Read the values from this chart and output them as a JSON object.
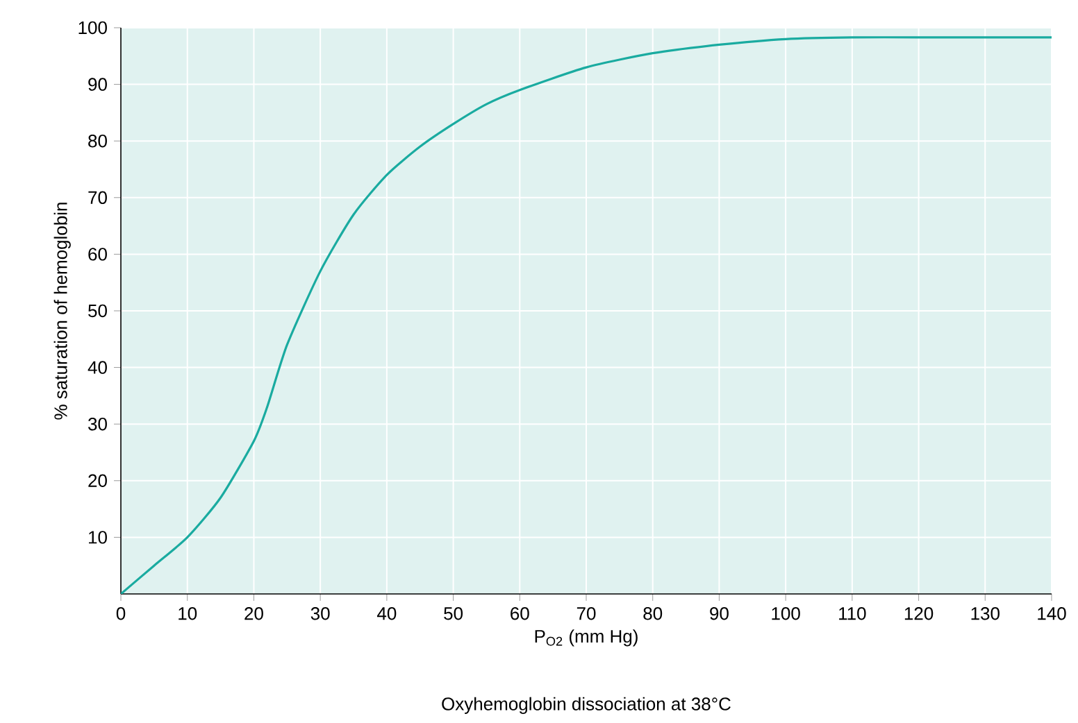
{
  "chart_data": {
    "type": "line",
    "xlabel": "P$_{O2}$ (mm Hg)",
    "ylabel": "% saturation of hemoglobin",
    "annotations": [
      "Oxyhemoglobin dissociation at 38°C"
    ],
    "x": [
      0,
      5,
      10,
      15,
      20,
      22,
      25,
      30,
      35,
      40,
      45,
      50,
      55,
      60,
      70,
      80,
      90,
      100,
      110,
      120,
      130,
      140
    ],
    "series": [
      {
        "color": "#1aaba0",
        "values": [
          0,
          5,
          10,
          17,
          27,
          33,
          44,
          57,
          67,
          74,
          79,
          83,
          86.5,
          89,
          93,
          95.5,
          97,
          98,
          98.3,
          98.3,
          98.3,
          98.3
        ]
      }
    ],
    "xlim": [
      0,
      140
    ],
    "ylim": [
      0,
      100
    ],
    "xticks": [
      0,
      10,
      20,
      30,
      40,
      50,
      60,
      70,
      80,
      90,
      100,
      110,
      120,
      130,
      140
    ],
    "yticks": [
      10,
      20,
      30,
      40,
      50,
      60,
      70,
      80,
      90,
      100
    ],
    "grid": true,
    "marker": "none",
    "line_style": "solid"
  }
}
